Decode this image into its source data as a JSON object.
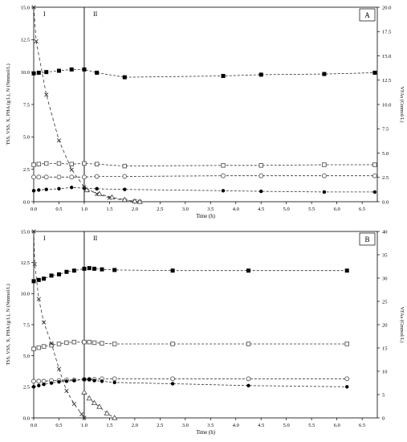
{
  "chart_data": [
    {
      "panel": "A",
      "type": "line",
      "xlabel": "Time (h)",
      "ylabel": "TSS, VSS, X, PHA (g/L), N (Nmmol/L)",
      "y2label": "VFAs (Cmmol/L)",
      "xlim": [
        0,
        6.8
      ],
      "ylim": [
        0,
        15
      ],
      "y2lim": [
        0,
        20
      ],
      "xticks": [
        "0.0",
        "0.5",
        "1.0",
        "1.5",
        "2.0",
        "2.5",
        "3.0",
        "3.5",
        "4.0",
        "4.5",
        "5.0",
        "5.5",
        "6.0",
        "6.5"
      ],
      "yticks": [
        "0.0",
        "2.5",
        "5.0",
        "7.5",
        "10.0",
        "12.5",
        "15.0"
      ],
      "y2ticks": [
        "0.0",
        "2.5",
        "5.0",
        "7.5",
        "10.0",
        "12.5",
        "15.0",
        "17.5",
        "20.0"
      ],
      "phase_labels": [
        "I",
        "II"
      ],
      "phase_boundary_x": 1.0,
      "grid": false,
      "series": [
        {
          "marker": "filled-square",
          "axis": "left",
          "dash": "3,2",
          "x": [
            0.0,
            0.1,
            0.25,
            0.5,
            0.75,
            1.0,
            1.25,
            1.8,
            3.75,
            4.5,
            5.75,
            6.75
          ],
          "y": [
            9.9,
            9.95,
            10.0,
            10.1,
            10.2,
            10.2,
            9.95,
            9.6,
            9.7,
            9.8,
            9.85,
            9.95
          ]
        },
        {
          "marker": "open-square",
          "axis": "left",
          "dash": "3,2",
          "x": [
            0.0,
            0.1,
            0.25,
            0.5,
            0.75,
            1.0,
            1.25,
            1.8,
            3.75,
            4.5,
            5.75,
            6.75
          ],
          "y": [
            2.85,
            2.9,
            2.95,
            2.95,
            2.9,
            2.95,
            2.9,
            2.75,
            2.8,
            2.8,
            2.85,
            2.85
          ]
        },
        {
          "marker": "open-circle",
          "axis": "left",
          "dash": "3,2",
          "x": [
            0.0,
            0.1,
            0.25,
            0.5,
            0.75,
            1.0,
            1.25,
            1.8,
            3.75,
            4.5,
            5.75,
            6.75
          ],
          "y": [
            1.9,
            1.9,
            1.9,
            1.9,
            1.9,
            1.9,
            1.95,
            1.95,
            2.0,
            2.0,
            2.0,
            2.0
          ]
        },
        {
          "marker": "filled-circle",
          "axis": "left",
          "dash": "3,2",
          "x": [
            0.0,
            0.1,
            0.25,
            0.5,
            0.75,
            1.0,
            1.25,
            1.8,
            3.75,
            4.5,
            5.75,
            6.75
          ],
          "y": [
            0.85,
            0.9,
            0.95,
            1.0,
            1.1,
            1.05,
            1.0,
            0.95,
            0.85,
            0.8,
            0.75,
            0.75
          ]
        },
        {
          "marker": "cross",
          "axis": "right",
          "dash": "4,3",
          "x": [
            0.0,
            0.05,
            0.25,
            0.5,
            0.75,
            1.0,
            1.25,
            1.5,
            1.8,
            2.0,
            2.1
          ],
          "y": [
            20.0,
            16.5,
            11.0,
            6.3,
            3.3,
            1.5,
            0.8,
            0.4,
            0.15,
            0.05,
            0.0
          ]
        },
        {
          "marker": "open-triangle",
          "axis": "right",
          "dash": "4,3",
          "x": [
            1.05,
            1.3,
            1.55,
            1.8,
            2.0,
            2.1
          ],
          "y": [
            1.2,
            0.8,
            0.45,
            0.2,
            0.05,
            0.0
          ]
        }
      ]
    },
    {
      "panel": "B",
      "type": "line",
      "xlabel": "Time (h)",
      "ylabel": "TSS, VSS, X, PHA (g/L), N (Nmmol/L)",
      "y2label": "VFAs (Cmmol/L)",
      "xlim": [
        0,
        6.8
      ],
      "ylim": [
        0,
        15
      ],
      "y2lim": [
        0,
        40
      ],
      "xticks": [
        "0.0",
        "0.5",
        "1.0",
        "1.5",
        "2.0",
        "2.5",
        "3.0",
        "3.5",
        "4.0",
        "4.5",
        "5.0",
        "5.5",
        "6.0",
        "6.5"
      ],
      "yticks": [
        "0.0",
        "2.5",
        "5.0",
        "7.5",
        "10.0",
        "12.5",
        "15.0"
      ],
      "y2ticks": [
        "0",
        "5",
        "10",
        "15",
        "20",
        "25",
        "30",
        "35",
        "40"
      ],
      "phase_labels": [
        "I",
        "II"
      ],
      "phase_boundary_x": 1.0,
      "grid": false,
      "series": [
        {
          "marker": "filled-square",
          "axis": "left",
          "dash": "3,2",
          "x": [
            0.0,
            0.1,
            0.2,
            0.35,
            0.5,
            0.65,
            0.8,
            1.0,
            1.1,
            1.2,
            1.35,
            1.6,
            2.75,
            4.25,
            6.2
          ],
          "y": [
            11.0,
            11.1,
            11.2,
            11.45,
            11.55,
            11.75,
            11.85,
            12.0,
            12.05,
            12.0,
            11.95,
            11.9,
            11.85,
            11.85,
            11.85
          ]
        },
        {
          "marker": "open-square",
          "axis": "left",
          "dash": "3,2",
          "x": [
            0.0,
            0.1,
            0.2,
            0.35,
            0.5,
            0.65,
            0.8,
            1.0,
            1.1,
            1.2,
            1.35,
            1.6,
            2.75,
            4.25,
            6.2
          ],
          "y": [
            5.55,
            5.65,
            5.75,
            5.85,
            5.95,
            6.05,
            6.1,
            6.1,
            6.1,
            6.05,
            6.0,
            5.95,
            5.95,
            5.95,
            5.95
          ]
        },
        {
          "marker": "open-circle",
          "axis": "left",
          "dash": "3,2",
          "x": [
            0.0,
            0.1,
            0.2,
            0.35,
            0.5,
            0.65,
            0.8,
            1.0,
            1.1,
            1.2,
            1.35,
            1.6,
            2.75,
            4.25,
            6.2
          ],
          "y": [
            2.95,
            2.95,
            2.95,
            3.0,
            3.0,
            3.05,
            3.05,
            3.1,
            3.1,
            3.1,
            3.15,
            3.15,
            3.15,
            3.15,
            3.15
          ]
        },
        {
          "marker": "filled-circle",
          "axis": "left",
          "dash": "3,2",
          "x": [
            0.0,
            0.1,
            0.2,
            0.35,
            0.5,
            0.65,
            0.8,
            1.0,
            1.1,
            1.2,
            1.35,
            1.6,
            2.75,
            4.25,
            6.2
          ],
          "y": [
            2.5,
            2.6,
            2.7,
            2.8,
            2.9,
            2.95,
            3.0,
            3.1,
            3.1,
            3.0,
            2.95,
            2.85,
            2.75,
            2.6,
            2.5
          ]
        },
        {
          "marker": "cross",
          "axis": "right",
          "dash": "4,3",
          "x": [
            0.0,
            0.02,
            0.1,
            0.2,
            0.35,
            0.5,
            0.65,
            0.8,
            0.95,
            1.0
          ],
          "y": [
            40.0,
            33.0,
            25.5,
            20.5,
            16.0,
            10.5,
            5.8,
            3.0,
            0.8,
            0.0
          ]
        },
        {
          "marker": "open-triangle",
          "axis": "right",
          "dash": "4,3",
          "x": [
            1.0,
            1.1,
            1.2,
            1.3,
            1.45,
            1.6
          ],
          "y": [
            5.5,
            4.2,
            3.2,
            2.4,
            1.0,
            0.0
          ]
        }
      ]
    }
  ]
}
